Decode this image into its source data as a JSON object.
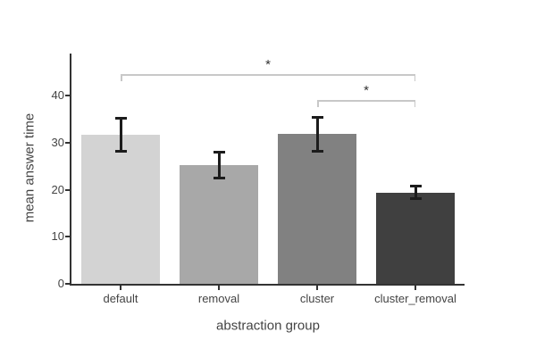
{
  "figure": {
    "background": "#ffffff",
    "axis_color": "#333333",
    "tick_label_color": "#444444"
  },
  "chart_data": {
    "type": "bar",
    "title": "",
    "xlabel": "abstraction group",
    "ylabel": "mean answer time",
    "categories": [
      "default",
      "removal",
      "cluster",
      "cluster_removal"
    ],
    "values": [
      31.6,
      25.2,
      31.8,
      19.4
    ],
    "error_bars": [
      3.6,
      2.9,
      3.7,
      1.4
    ],
    "bar_colors": [
      "#d3d3d3",
      "#a8a8a8",
      "#818181",
      "#404040"
    ],
    "error_bar_color": "#1c1c1c",
    "ylim": [
      0,
      49
    ],
    "yticks": [
      0,
      10,
      20,
      30,
      40
    ],
    "grid": false,
    "legend": false,
    "bracket_color": "#c8c8c8",
    "significance_color": "#333333",
    "significance_brackets": [
      {
        "from": "default",
        "to": "cluster_removal",
        "label": "*"
      },
      {
        "from": "cluster",
        "to": "cluster_removal",
        "label": "*"
      }
    ]
  }
}
